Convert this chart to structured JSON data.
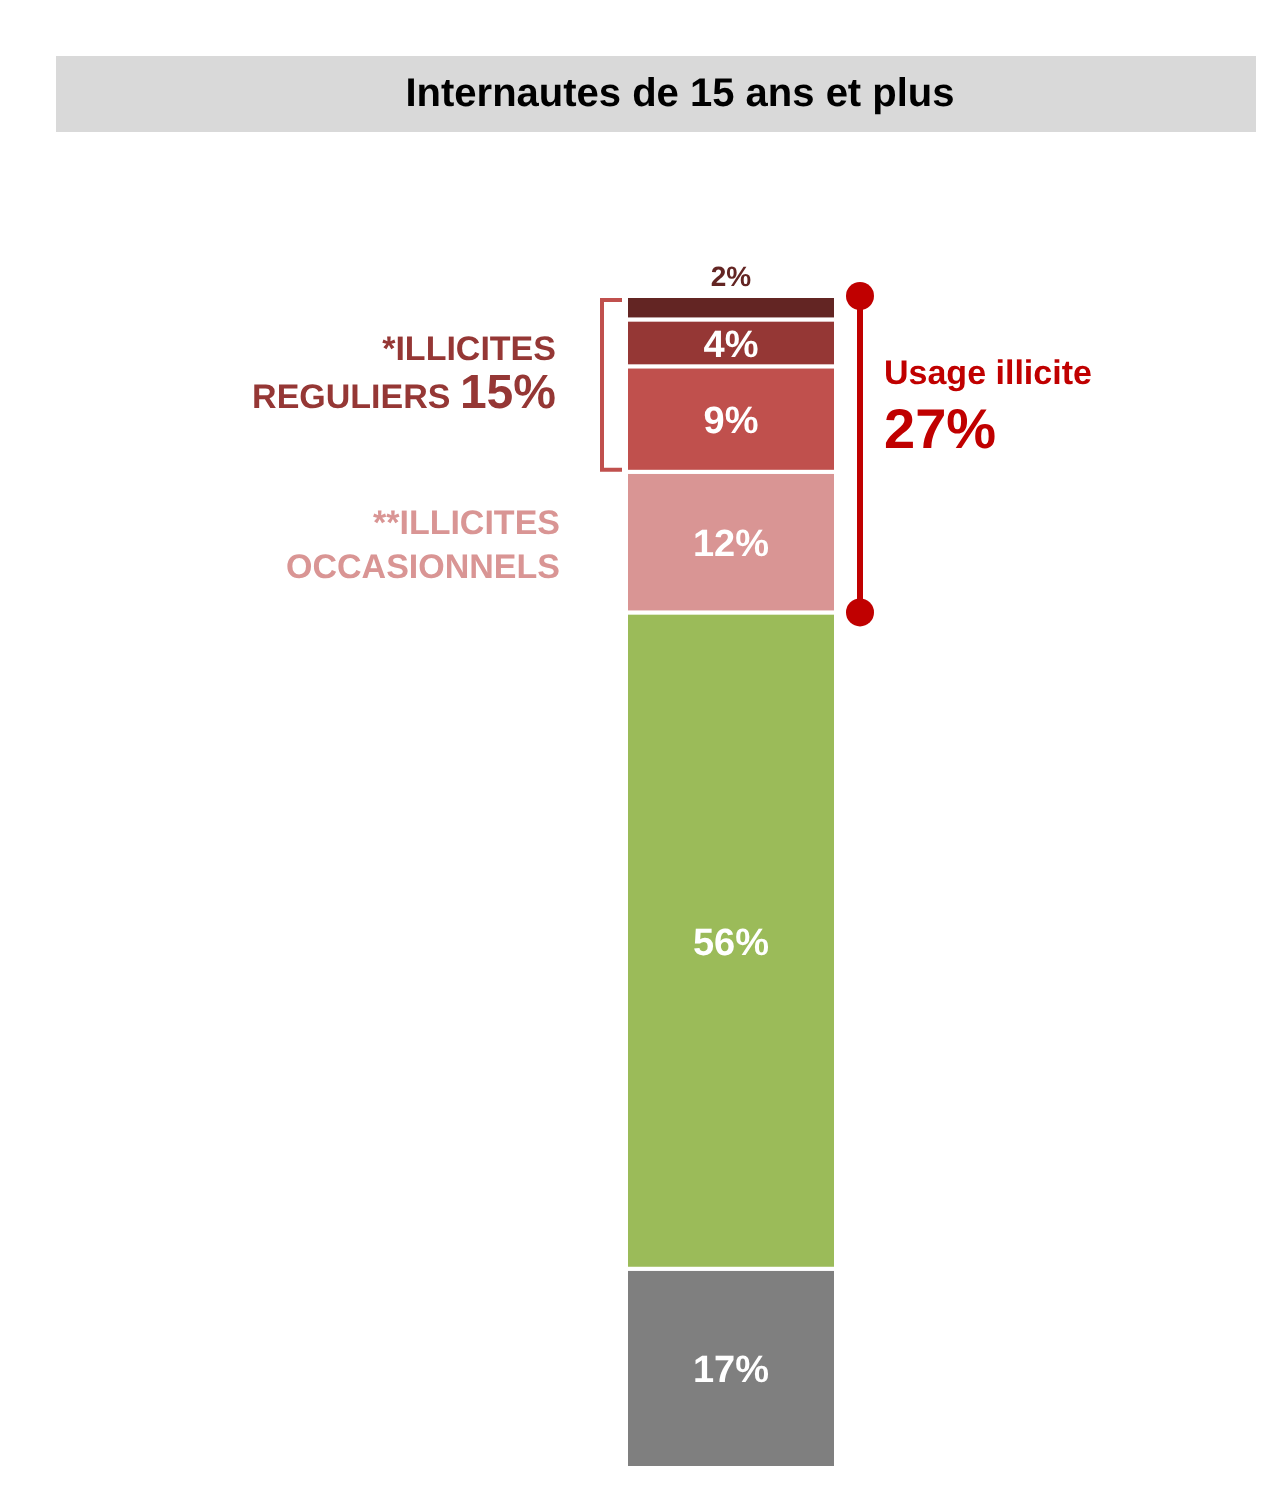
{
  "chart_data": {
    "type": "bar",
    "title": "Internautes de 15 ans et plus",
    "categories": [
      null
    ],
    "stacked": true,
    "series": [
      {
        "color": "#7f7f7f",
        "values": [
          17
        ],
        "value_labels": [
          "17%"
        ]
      },
      {
        "color": "#9bbb59",
        "values": [
          56
        ],
        "value_labels": [
          "56%"
        ]
      },
      {
        "color": "#d99594",
        "values": [
          12
        ],
        "value_labels": [
          "12%"
        ]
      },
      {
        "color": "#c0504d",
        "values": [
          9
        ],
        "value_labels": [
          "9%"
        ]
      },
      {
        "color": "#953735",
        "values": [
          4
        ],
        "value_labels": [
          "4%"
        ]
      },
      {
        "color": "#632523",
        "values": [
          2
        ],
        "value_labels": [
          "2%"
        ]
      }
    ],
    "annotations": [
      "*ILLICITES\nREGULIERS 15%",
      "**ILLICITES\nOCCASIONNELS",
      "Usage illicite\n27%"
    ]
  }
}
